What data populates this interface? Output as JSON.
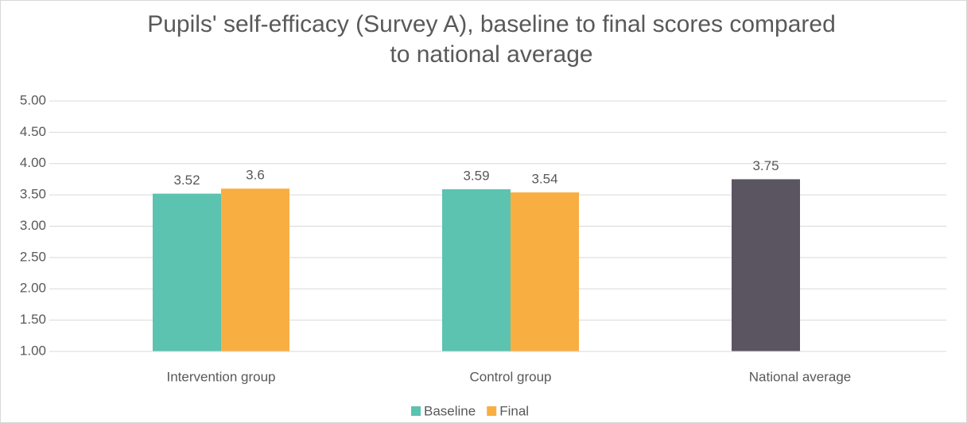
{
  "chart_data": {
    "type": "bar",
    "title": "Pupils' self-efficacy (Survey A), baseline to final scores compared to national average",
    "categories": [
      "Intervention group",
      "Control group",
      "National average"
    ],
    "series": [
      {
        "name": "Baseline",
        "color": "#5bc3b0",
        "point_colors": [
          "#5bc3b0",
          "#5bc3b0",
          "#5a5561"
        ],
        "values": [
          3.52,
          3.59,
          3.75
        ]
      },
      {
        "name": "Final",
        "color": "#f9ae42",
        "values": [
          3.6,
          3.54,
          null
        ]
      }
    ],
    "ylim": [
      1,
      5
    ],
    "yticks": [
      {
        "value": 1,
        "label": "1.00"
      },
      {
        "value": 1.5,
        "label": "1.50"
      },
      {
        "value": 2,
        "label": "2.00"
      },
      {
        "value": 2.5,
        "label": "2.50"
      },
      {
        "value": 3,
        "label": "3.00"
      },
      {
        "value": 3.5,
        "label": "3.50"
      },
      {
        "value": 4,
        "label": "4.00"
      },
      {
        "value": 4.5,
        "label": "4.50"
      },
      {
        "value": 5,
        "label": "5.00"
      }
    ],
    "grid": true,
    "legend": "bottom"
  }
}
